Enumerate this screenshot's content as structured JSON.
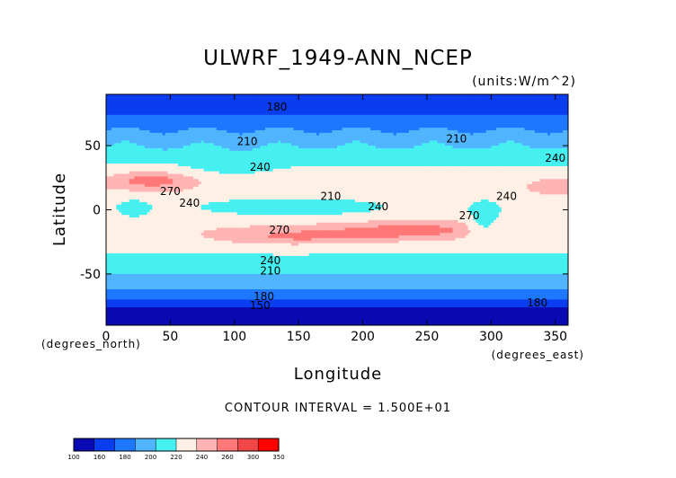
{
  "chart_data": {
    "type": "heatmap",
    "title": "ULWRF_1949-ANN_NCEP",
    "units_label": "(units:W/m^2)",
    "xlabel": "Longitude",
    "ylabel": "Latitude",
    "x_unit_label": "(degrees_east)",
    "y_unit_label": "(degrees_north)",
    "xlim": [
      0,
      360
    ],
    "ylim": [
      -90,
      90
    ],
    "x_ticks": [
      0,
      50,
      100,
      150,
      200,
      250,
      300,
      350
    ],
    "y_ticks": [
      -50,
      0,
      50
    ],
    "contour_interval_text": "CONTOUR INTERVAL = 1.500E+01",
    "colorbar": {
      "ticks": [
        "100",
        "160",
        "180",
        "200",
        "220",
        "240",
        "260",
        "300",
        "350"
      ],
      "colors": [
        "#0a0ab4",
        "#0a3cf0",
        "#1e78ff",
        "#50b4ff",
        "#46f0f0",
        "#fff0e6",
        "#ffb4b4",
        "#ff7878",
        "#f04646",
        "#ff0000"
      ]
    },
    "contour_labels": [
      {
        "text": "180",
        "lon": 133,
        "lat": 80
      },
      {
        "text": "210",
        "lon": 110,
        "lat": 53
      },
      {
        "text": "240",
        "lon": 120,
        "lat": 33
      },
      {
        "text": "270",
        "lon": 50,
        "lat": 14
      },
      {
        "text": "240",
        "lon": 65,
        "lat": 5
      },
      {
        "text": "210",
        "lon": 175,
        "lat": 10
      },
      {
        "text": "240",
        "lon": 212,
        "lat": 2
      },
      {
        "text": "210",
        "lon": 273,
        "lat": 55
      },
      {
        "text": "240",
        "lon": 350,
        "lat": 40
      },
      {
        "text": "270",
        "lon": 135,
        "lat": -16
      },
      {
        "text": "240",
        "lon": 128,
        "lat": -40
      },
      {
        "text": "210",
        "lon": 128,
        "lat": -48
      },
      {
        "text": "180",
        "lon": 123,
        "lat": -68
      },
      {
        "text": "150",
        "lon": 120,
        "lat": -75
      },
      {
        "text": "180",
        "lon": 336,
        "lat": -73
      },
      {
        "text": "270",
        "lon": 283,
        "lat": -5
      },
      {
        "text": "240",
        "lon": 312,
        "lat": 10
      }
    ],
    "grid": false,
    "colormap": "blue-white-red",
    "value_range": [
      100,
      350
    ],
    "tick_labels": {
      "x": [
        "0",
        "50",
        "100",
        "150",
        "200",
        "250",
        "300",
        "350"
      ],
      "y": [
        "50",
        "0",
        "-50"
      ]
    }
  }
}
